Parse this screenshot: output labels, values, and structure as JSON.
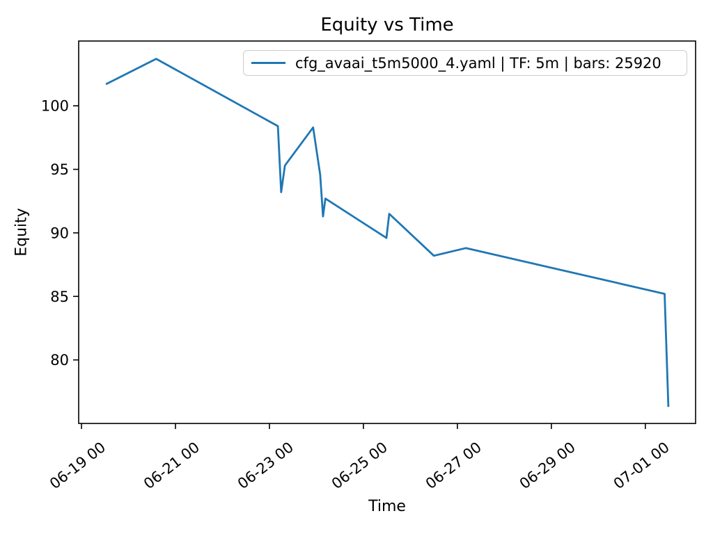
{
  "chart_data": {
    "type": "line",
    "title": "Equity vs Time",
    "xlabel": "Time",
    "ylabel": "Equity",
    "grid": false,
    "legend_position": "upper right",
    "colors": {
      "line": "#1f77b4",
      "spine": "#000000",
      "legend_border": "#cccccc",
      "background": "#ffffff"
    },
    "x_axis": {
      "unit": "days since 06-19 00:00",
      "lim": [
        -0.06,
        13.07
      ],
      "tick_rotation_deg": 38,
      "ticks": [
        {
          "d": 0,
          "label": "06-19 00"
        },
        {
          "d": 2,
          "label": "06-21 00"
        },
        {
          "d": 4,
          "label": "06-23 00"
        },
        {
          "d": 6,
          "label": "06-25 00"
        },
        {
          "d": 8,
          "label": "06-27 00"
        },
        {
          "d": 10,
          "label": "06-29 00"
        },
        {
          "d": 12,
          "label": "07-01 00"
        }
      ]
    },
    "y_axis": {
      "lim": [
        75.0,
        105.1
      ],
      "ticks": [
        80,
        85,
        90,
        95,
        100
      ]
    },
    "series": [
      {
        "name": "cfg_avaai_t5m5000_4.yaml | TF: 5m | bars: 25920",
        "color": "#1f77b4",
        "points": [
          {
            "t": "06-19 12:30",
            "d": 0.52,
            "v": 101.7
          },
          {
            "t": "06-20 14:00",
            "d": 1.59,
            "v": 103.7
          },
          {
            "t": "06-23 04:20",
            "d": 4.18,
            "v": 98.4
          },
          {
            "t": "06-23 06:00",
            "d": 4.25,
            "v": 93.2
          },
          {
            "t": "06-23 08:00",
            "d": 4.33,
            "v": 95.3
          },
          {
            "t": "06-23 22:20",
            "d": 4.93,
            "v": 98.3
          },
          {
            "t": "06-24 02:00",
            "d": 5.08,
            "v": 94.6
          },
          {
            "t": "06-24 03:20",
            "d": 5.14,
            "v": 91.3
          },
          {
            "t": "06-24 04:30",
            "d": 5.19,
            "v": 92.7
          },
          {
            "t": "06-25 11:45",
            "d": 6.49,
            "v": 89.6
          },
          {
            "t": "06-25 13:15",
            "d": 6.55,
            "v": 91.5
          },
          {
            "t": "06-26 12:00",
            "d": 7.5,
            "v": 88.2
          },
          {
            "t": "06-27 04:20",
            "d": 8.18,
            "v": 88.8
          },
          {
            "t": "07-01 09:50",
            "d": 12.41,
            "v": 85.2
          },
          {
            "t": "07-01 11:45",
            "d": 12.49,
            "v": 76.3
          }
        ]
      }
    ]
  }
}
